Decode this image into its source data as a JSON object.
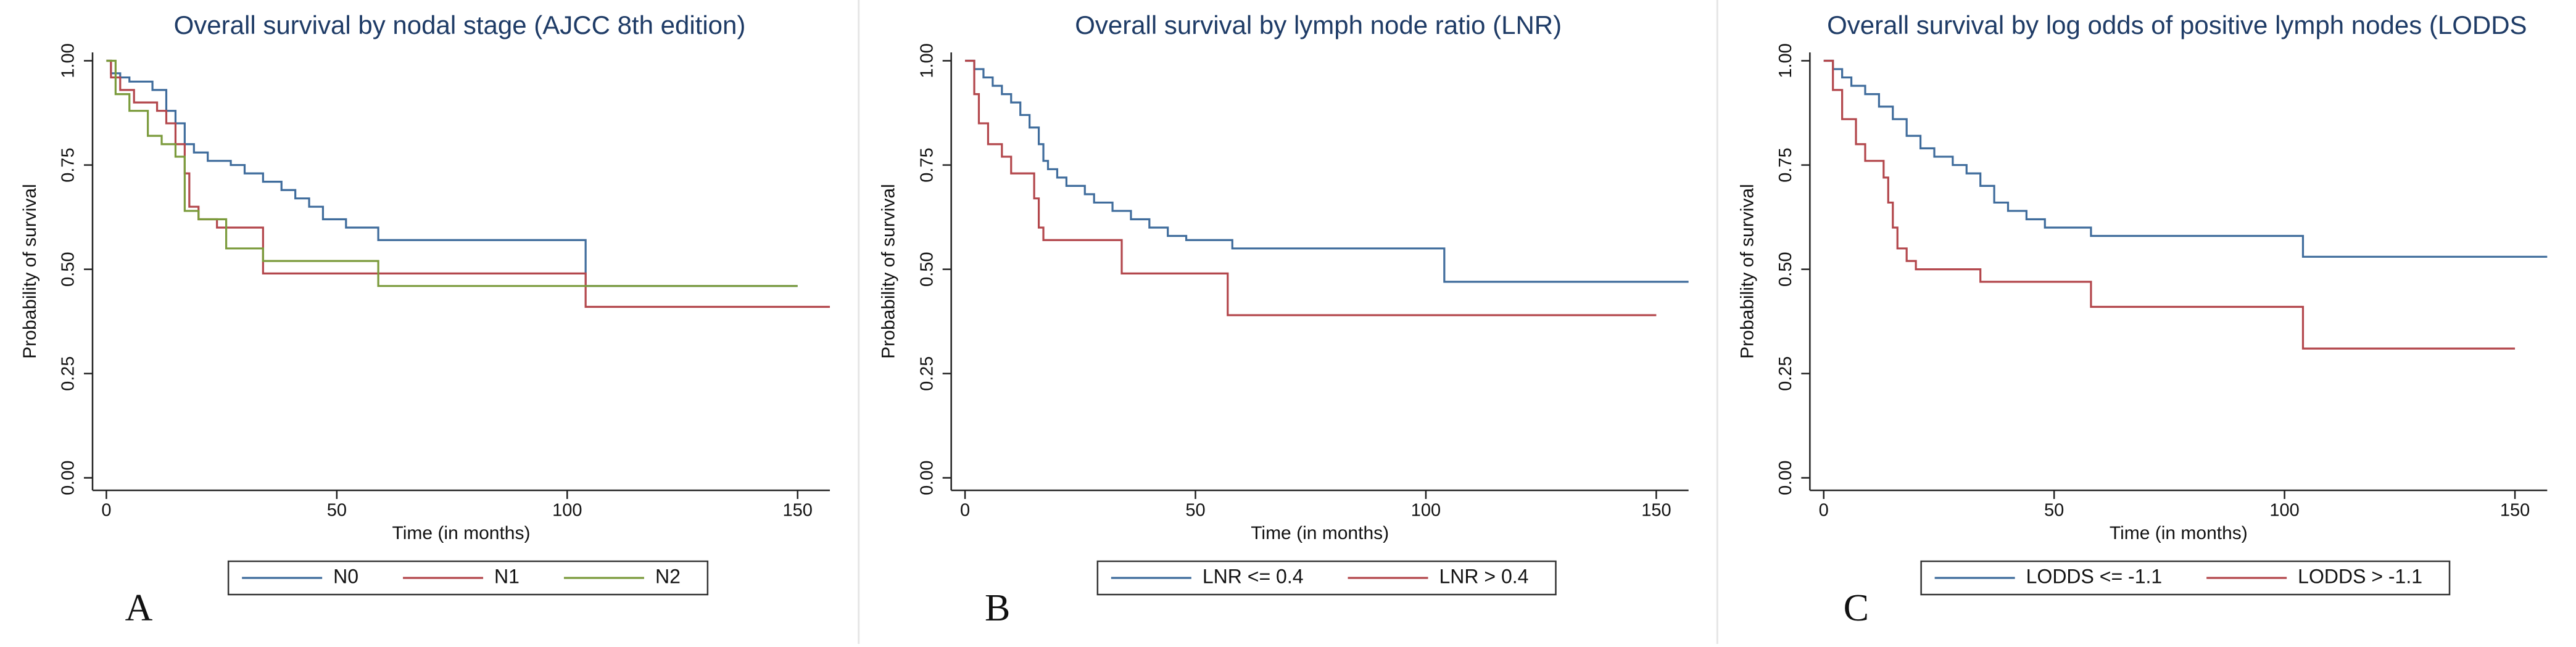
{
  "chart_data": [
    {
      "type": "step",
      "title": "Overall survival by nodal stage (AJCC 8th edition)",
      "xlabel": "Time (in months)",
      "ylabel": "Probability of survival",
      "panel_label": "A",
      "xlim": [
        -3,
        157
      ],
      "ylim": [
        -0.03,
        1.02
      ],
      "xticks": [
        0,
        50,
        100,
        150
      ],
      "yticks": [
        {
          "value": 0,
          "label": "0.00"
        },
        {
          "value": 0.25,
          "label": "0.25"
        },
        {
          "value": 0.5,
          "label": "0.50"
        },
        {
          "value": 0.75,
          "label": "0.75"
        },
        {
          "value": 1,
          "label": "1.00"
        }
      ],
      "legend": "bottom",
      "series": [
        {
          "name": "N0",
          "color": "#3f6c9c",
          "x": [
            0,
            1,
            3,
            5,
            10,
            13,
            15,
            17,
            19,
            22,
            27,
            30,
            34,
            38,
            41,
            44,
            47,
            52,
            59,
            104,
            150
          ],
          "values": [
            1,
            0.97,
            0.96,
            0.95,
            0.93,
            0.88,
            0.85,
            0.8,
            0.78,
            0.76,
            0.75,
            0.73,
            0.71,
            0.69,
            0.67,
            0.65,
            0.62,
            0.6,
            0.57,
            0.46,
            0.46
          ]
        },
        {
          "name": "N1",
          "color": "#b3474c",
          "x": [
            0,
            1,
            3,
            6,
            11,
            13,
            15,
            17,
            18,
            20,
            24,
            34,
            104,
            157
          ],
          "values": [
            1,
            0.96,
            0.93,
            0.9,
            0.88,
            0.85,
            0.8,
            0.73,
            0.65,
            0.62,
            0.6,
            0.49,
            0.41,
            0.41
          ]
        },
        {
          "name": "N2",
          "color": "#7b9b3c",
          "x": [
            0,
            2,
            5,
            9,
            12,
            15,
            17,
            20,
            26,
            34,
            59,
            150
          ],
          "values": [
            1,
            0.92,
            0.88,
            0.82,
            0.8,
            0.77,
            0.64,
            0.62,
            0.55,
            0.52,
            0.46,
            0.46
          ]
        }
      ]
    },
    {
      "type": "step",
      "title": "Overall survival by lymph node ratio (LNR)",
      "xlabel": "Time (in months)",
      "ylabel": "Probability of survival",
      "panel_label": "B",
      "xlim": [
        -3,
        157
      ],
      "ylim": [
        -0.03,
        1.02
      ],
      "xticks": [
        0,
        50,
        100,
        150
      ],
      "yticks": [
        {
          "value": 0,
          "label": "0.00"
        },
        {
          "value": 0.25,
          "label": "0.25"
        },
        {
          "value": 0.5,
          "label": "0.50"
        },
        {
          "value": 0.75,
          "label": "0.75"
        },
        {
          "value": 1,
          "label": "1.00"
        }
      ],
      "legend": "bottom",
      "series": [
        {
          "name": "LNR <= 0.4",
          "color": "#3f6c9c",
          "x": [
            0,
            2,
            4,
            6,
            8,
            10,
            12,
            14,
            16,
            17,
            18,
            20,
            22,
            26,
            28,
            32,
            36,
            40,
            44,
            48,
            58,
            104,
            157
          ],
          "values": [
            1,
            0.98,
            0.96,
            0.94,
            0.92,
            0.9,
            0.87,
            0.84,
            0.8,
            0.76,
            0.74,
            0.72,
            0.7,
            0.68,
            0.66,
            0.64,
            0.62,
            0.6,
            0.58,
            0.57,
            0.55,
            0.47,
            0.47
          ]
        },
        {
          "name": "LNR > 0.4",
          "color": "#b3474c",
          "x": [
            0,
            2,
            3,
            5,
            8,
            10,
            15,
            16,
            17,
            34,
            57,
            150
          ],
          "values": [
            1,
            0.92,
            0.85,
            0.8,
            0.77,
            0.73,
            0.67,
            0.6,
            0.57,
            0.49,
            0.39,
            0.39
          ]
        }
      ]
    },
    {
      "type": "step",
      "title": "Overall survival by log odds of positive lymph nodes (LODDS",
      "xlabel": "Time (in months)",
      "ylabel": "Probability of survival",
      "panel_label": "C",
      "xlim": [
        -3,
        157
      ],
      "ylim": [
        -0.03,
        1.02
      ],
      "xticks": [
        0,
        50,
        100,
        150
      ],
      "yticks": [
        {
          "value": 0,
          "label": "0.00"
        },
        {
          "value": 0.25,
          "label": "0.25"
        },
        {
          "value": 0.5,
          "label": "0.50"
        },
        {
          "value": 0.75,
          "label": "0.75"
        },
        {
          "value": 1,
          "label": "1.00"
        }
      ],
      "legend": "bottom",
      "series": [
        {
          "name": "LODDS <= -1.1",
          "color": "#3f6c9c",
          "x": [
            0,
            2,
            4,
            6,
            9,
            12,
            15,
            18,
            21,
            24,
            28,
            31,
            34,
            37,
            40,
            44,
            48,
            58,
            104,
            157
          ],
          "values": [
            1,
            0.98,
            0.96,
            0.94,
            0.92,
            0.89,
            0.86,
            0.82,
            0.79,
            0.77,
            0.75,
            0.73,
            0.7,
            0.66,
            0.64,
            0.62,
            0.6,
            0.58,
            0.53,
            0.53
          ]
        },
        {
          "name": "LODDS > -1.1",
          "color": "#b3474c",
          "x": [
            0,
            2,
            4,
            7,
            9,
            13,
            14,
            15,
            16,
            18,
            20,
            34,
            58,
            104,
            150
          ],
          "values": [
            1,
            0.93,
            0.86,
            0.8,
            0.76,
            0.72,
            0.66,
            0.6,
            0.55,
            0.52,
            0.5,
            0.47,
            0.41,
            0.31,
            0.31
          ]
        }
      ]
    }
  ]
}
